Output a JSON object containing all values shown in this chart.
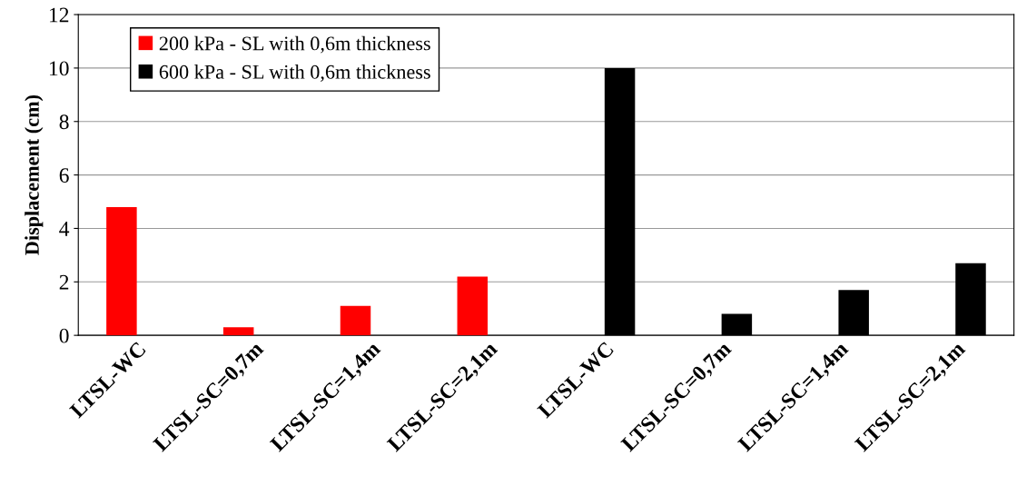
{
  "chart_data": {
    "type": "bar",
    "ylabel": "Displacement (cm)",
    "categories": [
      "LTSL-WC",
      "LTSL-SC=0,7m",
      "LTSL-SC=1,4m",
      "LTSL-SC=2,1m",
      "LTSL-WC",
      "LTSL-SC=0,7m",
      "LTSL-SC=1,4m",
      "LTSL-SC=2,1m"
    ],
    "series": [
      {
        "name": "200 kPa - SL with 0,6m thickness",
        "color": "#ff0000",
        "values": [
          4.8,
          0.3,
          1.1,
          2.2,
          null,
          null,
          null,
          null
        ]
      },
      {
        "name": "600 kPa - SL with 0,6m thickness",
        "color": "#000000",
        "values": [
          null,
          null,
          null,
          null,
          10.0,
          0.8,
          1.7,
          2.7
        ]
      }
    ],
    "ylim": [
      0,
      12
    ],
    "yticks": [
      0,
      2,
      4,
      6,
      8,
      10,
      12
    ],
    "grid": "y",
    "legend": "top left"
  }
}
